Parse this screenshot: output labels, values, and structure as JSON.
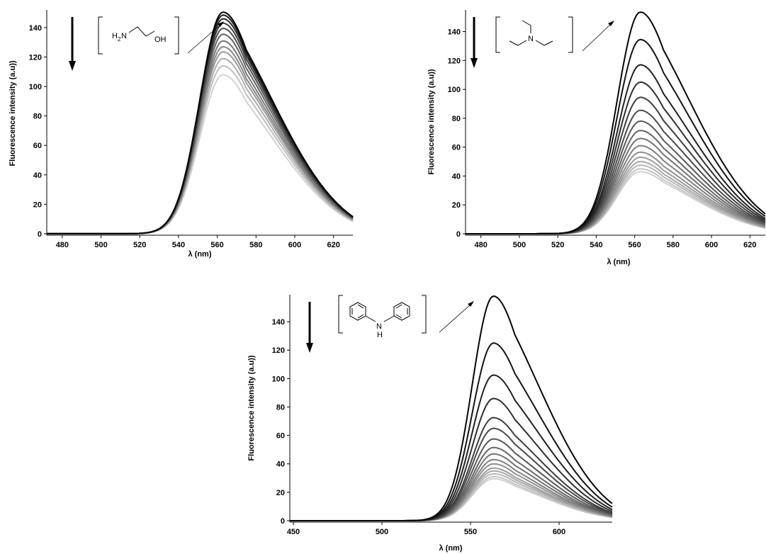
{
  "chart_data": [
    {
      "type": "line",
      "panel": "top-left",
      "title": "",
      "xlabel": "λ (nm)",
      "ylabel": "Fluorescence intensity (a.u))",
      "xlim": [
        472,
        630
      ],
      "ylim": [
        -1,
        152
      ],
      "xticks": [
        480,
        500,
        520,
        540,
        560,
        580,
        600,
        620
      ],
      "yticks": [
        0,
        20,
        40,
        60,
        80,
        100,
        120,
        140
      ],
      "peak_x": 563,
      "peaks": [
        150.5,
        148.5,
        146,
        143,
        139.5,
        135.5,
        131,
        127,
        123.5,
        119,
        114,
        108
      ],
      "tail_ratio": 0.247,
      "molecule": "ethanolamine",
      "molecule_atoms": [
        "H",
        "2",
        "N",
        "OH"
      ],
      "arrow_direction": "down",
      "grid": false,
      "legend": "none"
    },
    {
      "type": "line",
      "panel": "top-right",
      "title": "",
      "xlabel": "λ (nm)",
      "ylabel": "Fluorescence intensity (a.u))",
      "xlim": [
        472,
        628
      ],
      "ylim": [
        -1,
        155
      ],
      "xticks": [
        480,
        500,
        520,
        540,
        560,
        580,
        600,
        620
      ],
      "yticks": [
        0,
        20,
        40,
        60,
        80,
        100,
        120,
        140
      ],
      "peak_x": 563,
      "peaks": [
        153.5,
        134.5,
        117,
        105,
        94.5,
        85.5,
        78,
        71.5,
        66,
        61,
        56.5,
        53,
        50,
        47.5,
        45,
        43
      ],
      "tail_ratio": 0.27,
      "molecule": "triethylamine",
      "molecule_atoms": [
        "N"
      ],
      "arrow_direction": "down",
      "grid": false,
      "legend": "none"
    },
    {
      "type": "line",
      "panel": "bottom",
      "title": "",
      "xlabel": "λ (nm)",
      "ylabel": "Fluorescence intensity (a.u))",
      "xlim": [
        448,
        630
      ],
      "ylim": [
        -1,
        159
      ],
      "xticks": [
        450,
        500,
        550,
        600
      ],
      "yticks": [
        0,
        20,
        40,
        60,
        80,
        100,
        120,
        140
      ],
      "peak_x": 563,
      "peaks": [
        158,
        125,
        102.5,
        86,
        72.5,
        65,
        57.5,
        51.5,
        47,
        43,
        40,
        37,
        35,
        33,
        31,
        29.5
      ],
      "tail_ratio": 0.245,
      "molecule": "diphenylamine",
      "molecule_atoms": [
        "N",
        "H"
      ],
      "arrow_direction": "down",
      "grid": false,
      "legend": "none"
    }
  ]
}
